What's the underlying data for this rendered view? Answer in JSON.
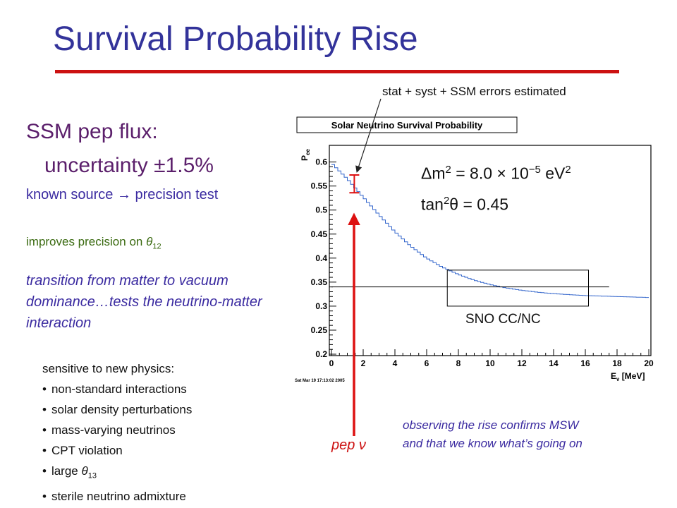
{
  "slide": {
    "title": "Survival Probability Rise",
    "ssm_pep": "SSM pep flux:",
    "uncertainty": "uncertainty ±1.5%",
    "known_source": "known source → precision test",
    "improves_text": "improves precision on ",
    "improves_symbol": "θ",
    "improves_sub": "12",
    "transition": "transition from matter to vacuum dominance…tests the neutrino-matter interaction",
    "sensitive_heading": "sensitive to new physics:",
    "sensitive_items": [
      "non-standard interactions",
      "solar density perturbations",
      "mass-varying neutrinos",
      "CPT violation"
    ],
    "large_text": "large ",
    "large_symbol": "θ",
    "large_sub": "13",
    "sterile": "sterile neutrino admixture",
    "stat_note": "stat + syst + SSM errors estimated",
    "dm2_text": "Δm",
    "dm2_sup": "2",
    "dm2_value": " = 8.0 × 10",
    "dm2_exp": "−5",
    "dm2_unit": " eV",
    "dm2_unit_sup": "2",
    "tan_text": "tan",
    "tan_sup": "2",
    "tan_value": "θ = 0.45",
    "sno_label": "SNO CC/NC",
    "pep_label": "pep ν",
    "observing": "observing the rise confirms MSW and that we know what’s going on"
  },
  "colors": {
    "title": "#33339a",
    "accent_red": "#cc1111",
    "curve": "#3366cc"
  },
  "chart_data": {
    "type": "line",
    "title": "Solar Neutrino Survival Probability",
    "ylabel": "P",
    "ylabel_sub": "ee",
    "xlabel": "E",
    "xlabel_sub": "ν",
    "xlabel_unit": " [MeV]",
    "xlim": [
      0,
      20
    ],
    "ylim": [
      0.2,
      0.62
    ],
    "x_ticks": [
      0,
      2,
      4,
      6,
      8,
      10,
      12,
      14,
      16,
      18,
      20
    ],
    "y_ticks": [
      0.2,
      0.25,
      0.3,
      0.35,
      0.4,
      0.45,
      0.5,
      0.55,
      0.6
    ],
    "x_tick_labels": [
      "0",
      "2",
      "4",
      "6",
      "8",
      "10",
      "12",
      "14",
      "16",
      "18",
      "20"
    ],
    "y_tick_labels": [
      "0.2",
      "0.25",
      "0.3",
      "0.35",
      "0.4",
      "0.45",
      "0.5",
      "0.55",
      "0.6"
    ],
    "timestamp": "Sat Mar 19 17:13:02 2005",
    "series": [
      {
        "x": [
          0,
          1,
          2,
          3,
          4,
          5,
          6,
          7,
          8,
          9,
          10,
          11,
          12,
          13,
          14,
          15,
          16,
          17,
          18,
          19,
          20
        ],
        "y": [
          0.598,
          0.565,
          0.527,
          0.49,
          0.455,
          0.425,
          0.4,
          0.381,
          0.366,
          0.354,
          0.345,
          0.338,
          0.333,
          0.329,
          0.326,
          0.324,
          0.322,
          0.321,
          0.32,
          0.319,
          0.318
        ]
      }
    ],
    "pep_point": {
      "x": 1.44,
      "y": 0.555,
      "y_err_low": 0.536,
      "y_err_high": 0.573
    },
    "sno_reference": {
      "y": 0.34,
      "x_range": [
        0,
        17.5
      ]
    },
    "sno_box": {
      "x_range": [
        7.3,
        16.2
      ],
      "y_range": [
        0.3,
        0.375
      ]
    }
  }
}
